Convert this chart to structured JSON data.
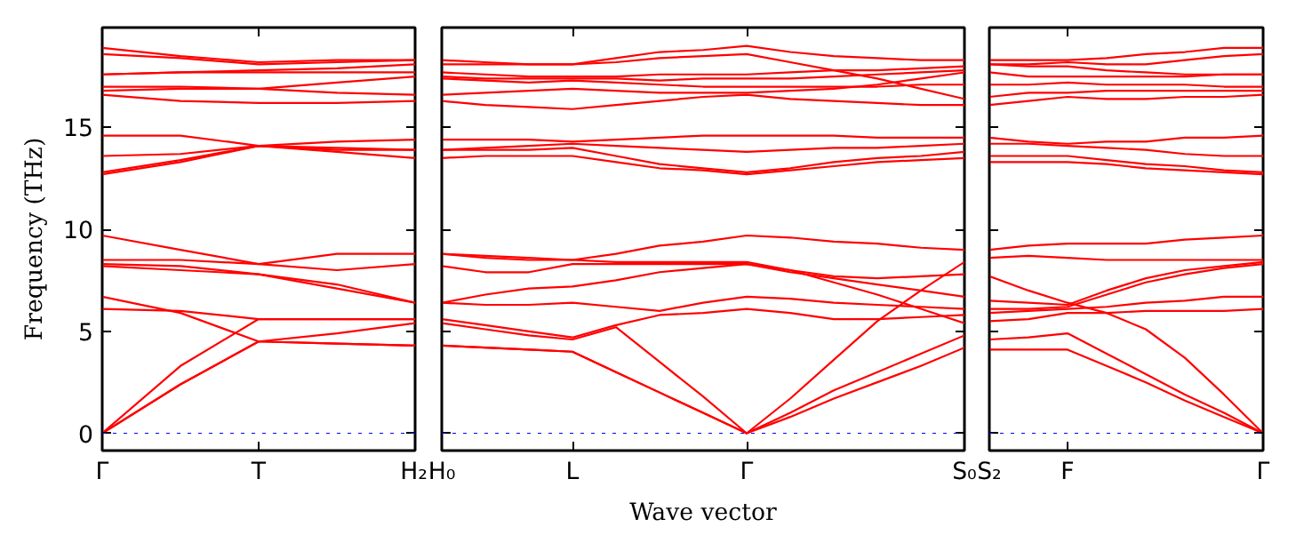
{
  "chart_data": [
    {
      "type": "line",
      "ylabel": "Frequency (THz)",
      "ylim": [
        -0.85,
        19.9
      ],
      "yticks": [
        0,
        5,
        10,
        15
      ],
      "categories": [
        "Γ",
        null,
        "T",
        null,
        "H₂"
      ],
      "ref_lines": [
        {
          "axis": "y",
          "value": 0,
          "color": "#0000ff",
          "line_style": "dotted"
        }
      ],
      "series": [
        {
          "color": "#ff0000",
          "values": [
            0,
            2.4,
            4.5,
            4.4,
            4.3
          ]
        },
        {
          "color": "#ff0000",
          "values": [
            0,
            2.4,
            4.5,
            4.9,
            5.4
          ]
        },
        {
          "color": "#ff0000",
          "values": [
            0,
            3.3,
            5.6,
            5.6,
            5.6
          ]
        },
        {
          "color": "#ff0000",
          "values": [
            6.1,
            6.0,
            5.6,
            5.6,
            5.6
          ]
        },
        {
          "color": "#ff0000",
          "values": [
            6.7,
            5.9,
            4.5,
            4.4,
            4.3
          ]
        },
        {
          "color": "#ff0000",
          "values": [
            8.2,
            8.0,
            7.8,
            7.1,
            6.4
          ]
        },
        {
          "color": "#ff0000",
          "values": [
            8.3,
            8.2,
            7.8,
            7.3,
            6.4
          ]
        },
        {
          "color": "#ff0000",
          "values": [
            8.5,
            8.5,
            8.3,
            8.0,
            8.3
          ]
        },
        {
          "color": "#ff0000",
          "values": [
            9.7,
            9.0,
            8.3,
            8.8,
            8.8
          ]
        },
        {
          "color": "#ff0000",
          "values": [
            12.7,
            13.3,
            14.1,
            14.0,
            13.9
          ]
        },
        {
          "color": "#ff0000",
          "values": [
            12.8,
            13.4,
            14.1,
            14.3,
            14.4
          ]
        },
        {
          "color": "#ff0000",
          "values": [
            13.6,
            13.7,
            14.1,
            13.8,
            13.5
          ]
        },
        {
          "color": "#ff0000",
          "values": [
            14.6,
            14.6,
            14.1,
            13.9,
            13.9
          ]
        },
        {
          "color": "#ff0000",
          "values": [
            16.6,
            16.3,
            16.2,
            16.2,
            16.3
          ]
        },
        {
          "color": "#ff0000",
          "values": [
            16.8,
            16.9,
            16.9,
            16.7,
            16.6
          ]
        },
        {
          "color": "#ff0000",
          "values": [
            17.0,
            17.0,
            16.9,
            17.2,
            17.5
          ]
        },
        {
          "color": "#ff0000",
          "values": [
            17.6,
            17.7,
            17.7,
            17.7,
            17.7
          ]
        },
        {
          "color": "#ff0000",
          "values": [
            17.6,
            17.7,
            17.8,
            17.9,
            18.1
          ]
        },
        {
          "color": "#ff0000",
          "values": [
            18.6,
            18.4,
            18.1,
            18.2,
            18.3
          ]
        },
        {
          "color": "#ff0000",
          "values": [
            18.9,
            18.5,
            18.2,
            18.3,
            18.3
          ]
        }
      ]
    },
    {
      "type": "line",
      "xlabel": "Wave vector",
      "tick_labels": "x",
      "ylim": [
        -0.85,
        19.9
      ],
      "yticks": [
        0,
        5,
        10,
        15
      ],
      "categories": [
        "H₀",
        null,
        null,
        "L",
        null,
        null,
        null,
        "Γ",
        null,
        null,
        null,
        null,
        "S₀"
      ],
      "ref_lines": [
        {
          "axis": "y",
          "value": 0,
          "color": "#0000ff",
          "line_style": "dotted"
        }
      ],
      "series": [
        {
          "color": "#ff0000",
          "values": [
            4.3,
            4.2,
            4.1,
            4.0,
            3.0,
            2.0,
            1.0,
            0,
            0.8,
            1.7,
            2.5,
            3.3,
            4.2
          ]
        },
        {
          "color": "#ff0000",
          "values": [
            4.3,
            4.2,
            4.1,
            4.0,
            3.0,
            2.0,
            1.0,
            0,
            1.0,
            2.1,
            3.0,
            3.9,
            4.8
          ]
        },
        {
          "color": "#ff0000",
          "values": [
            5.4,
            5.1,
            4.8,
            4.6,
            5.2,
            3.5,
            1.8,
            0,
            1.7,
            3.6,
            5.5,
            7.0,
            8.4
          ]
        },
        {
          "color": "#ff0000",
          "values": [
            5.6,
            5.3,
            5.0,
            4.7,
            5.3,
            5.8,
            5.9,
            6.1,
            5.9,
            5.6,
            5.6,
            5.7,
            5.8
          ]
        },
        {
          "color": "#ff0000",
          "values": [
            6.4,
            6.3,
            6.3,
            6.4,
            6.2,
            6.0,
            6.4,
            6.7,
            6.6,
            6.4,
            6.3,
            6.2,
            6.1
          ]
        },
        {
          "color": "#ff0000",
          "values": [
            6.4,
            6.8,
            7.1,
            7.2,
            7.5,
            7.9,
            8.1,
            8.3,
            7.9,
            7.6,
            7.3,
            7.0,
            6.7
          ]
        },
        {
          "color": "#ff0000",
          "values": [
            8.2,
            7.9,
            7.9,
            8.3,
            8.3,
            8.3,
            8.3,
            8.3,
            8.0,
            7.7,
            7.6,
            7.7,
            7.8
          ]
        },
        {
          "color": "#ff0000",
          "values": [
            8.8,
            8.7,
            8.6,
            8.5,
            8.4,
            8.4,
            8.4,
            8.4,
            8.0,
            7.4,
            6.8,
            6.1,
            5.4
          ]
        },
        {
          "color": "#ff0000",
          "values": [
            8.8,
            8.6,
            8.5,
            8.5,
            8.8,
            9.2,
            9.4,
            9.7,
            9.6,
            9.4,
            9.3,
            9.1,
            9.0
          ]
        },
        {
          "color": "#ff0000",
          "values": [
            13.5,
            13.6,
            13.6,
            13.6,
            13.3,
            13.0,
            12.9,
            12.7,
            12.9,
            13.1,
            13.3,
            13.4,
            13.5
          ]
        },
        {
          "color": "#ff0000",
          "values": [
            13.9,
            13.9,
            13.9,
            14.0,
            13.6,
            13.2,
            13.0,
            12.8,
            13.0,
            13.3,
            13.5,
            13.6,
            13.8
          ]
        },
        {
          "color": "#ff0000",
          "values": [
            13.9,
            14.0,
            14.1,
            14.2,
            14.1,
            14.0,
            13.9,
            13.8,
            13.9,
            14.0,
            14.0,
            14.1,
            14.2
          ]
        },
        {
          "color": "#ff0000",
          "values": [
            14.4,
            14.4,
            14.4,
            14.3,
            14.4,
            14.5,
            14.6,
            14.6,
            14.6,
            14.6,
            14.5,
            14.5,
            14.5
          ]
        },
        {
          "color": "#ff0000",
          "values": [
            16.3,
            16.1,
            16.0,
            15.9,
            16.1,
            16.3,
            16.5,
            16.6,
            16.4,
            16.3,
            16.2,
            16.1,
            16.1
          ]
        },
        {
          "color": "#ff0000",
          "values": [
            16.6,
            16.7,
            16.8,
            16.9,
            16.8,
            16.7,
            16.7,
            16.7,
            16.8,
            16.9,
            17.1,
            17.4,
            17.7
          ]
        },
        {
          "color": "#ff0000",
          "values": [
            17.4,
            17.3,
            17.2,
            17.3,
            17.2,
            17.1,
            17.0,
            17.0,
            17.0,
            17.0,
            17.0,
            17.1,
            17.1
          ]
        },
        {
          "color": "#ff0000",
          "values": [
            17.5,
            17.4,
            17.4,
            17.4,
            17.4,
            17.3,
            17.4,
            17.4,
            17.4,
            17.5,
            17.6,
            17.7,
            17.8
          ]
        },
        {
          "color": "#ff0000",
          "values": [
            17.7,
            17.6,
            17.5,
            17.5,
            17.5,
            17.6,
            17.6,
            17.6,
            17.7,
            17.8,
            17.8,
            17.9,
            18.0
          ]
        },
        {
          "color": "#ff0000",
          "values": [
            18.1,
            18.1,
            18.1,
            18.1,
            18.2,
            18.4,
            18.5,
            18.6,
            18.2,
            17.8,
            17.4,
            16.9,
            16.4
          ]
        },
        {
          "color": "#ff0000",
          "values": [
            18.3,
            18.2,
            18.1,
            18.1,
            18.4,
            18.7,
            18.8,
            19.0,
            18.7,
            18.5,
            18.4,
            18.3,
            18.3
          ]
        }
      ]
    },
    {
      "type": "line",
      "tick_labels": "x",
      "ylim": [
        -0.85,
        19.9
      ],
      "yticks": [
        0,
        5,
        10,
        15
      ],
      "categories": [
        "S₂",
        null,
        "F",
        null,
        null,
        null,
        null,
        "Γ"
      ],
      "ref_lines": [
        {
          "axis": "y",
          "value": 0,
          "color": "#0000ff",
          "line_style": "dotted"
        }
      ],
      "series": [
        {
          "color": "#ff0000",
          "values": [
            4.1,
            4.1,
            4.1,
            3.3,
            2.5,
            1.6,
            0.8,
            0
          ]
        },
        {
          "color": "#ff0000",
          "values": [
            4.6,
            4.7,
            4.9,
            3.9,
            2.9,
            1.9,
            1.0,
            0
          ]
        },
        {
          "color": "#ff0000",
          "values": [
            7.7,
            7.0,
            6.4,
            5.9,
            5.1,
            3.7,
            1.9,
            0
          ]
        },
        {
          "color": "#ff0000",
          "values": [
            5.5,
            5.6,
            5.9,
            5.9,
            6.0,
            6.0,
            6.0,
            6.1
          ]
        },
        {
          "color": "#ff0000",
          "values": [
            5.9,
            6.0,
            6.1,
            6.2,
            6.4,
            6.5,
            6.7,
            6.7
          ]
        },
        {
          "color": "#ff0000",
          "values": [
            6.1,
            6.1,
            6.2,
            6.8,
            7.4,
            7.8,
            8.1,
            8.3
          ]
        },
        {
          "color": "#ff0000",
          "values": [
            6.5,
            6.4,
            6.3,
            7.0,
            7.6,
            8.0,
            8.2,
            8.4
          ]
        },
        {
          "color": "#ff0000",
          "values": [
            8.6,
            8.7,
            8.6,
            8.5,
            8.5,
            8.5,
            8.5,
            8.5
          ]
        },
        {
          "color": "#ff0000",
          "values": [
            9.0,
            9.2,
            9.3,
            9.3,
            9.3,
            9.5,
            9.6,
            9.7
          ]
        },
        {
          "color": "#ff0000",
          "values": [
            13.3,
            13.3,
            13.3,
            13.2,
            13.0,
            12.9,
            12.8,
            12.7
          ]
        },
        {
          "color": "#ff0000",
          "values": [
            13.6,
            13.6,
            13.6,
            13.4,
            13.2,
            13.1,
            12.9,
            12.8
          ]
        },
        {
          "color": "#ff0000",
          "values": [
            14.2,
            14.2,
            14.1,
            14.0,
            13.9,
            13.7,
            13.6,
            13.6
          ]
        },
        {
          "color": "#ff0000",
          "values": [
            14.5,
            14.3,
            14.2,
            14.3,
            14.3,
            14.5,
            14.5,
            14.6
          ]
        },
        {
          "color": "#ff0000",
          "values": [
            16.1,
            16.3,
            16.5,
            16.4,
            16.4,
            16.5,
            16.5,
            16.6
          ]
        },
        {
          "color": "#ff0000",
          "values": [
            16.5,
            16.7,
            16.7,
            16.8,
            16.8,
            16.8,
            16.8,
            16.8
          ]
        },
        {
          "color": "#ff0000",
          "values": [
            17.1,
            17.1,
            17.2,
            17.1,
            17.1,
            17.1,
            17.0,
            17.0
          ]
        },
        {
          "color": "#ff0000",
          "values": [
            17.7,
            17.5,
            17.5,
            17.5,
            17.5,
            17.5,
            17.6,
            17.6
          ]
        },
        {
          "color": "#ff0000",
          "values": [
            18.1,
            18.0,
            18.0,
            17.8,
            17.7,
            17.6,
            17.6,
            17.6
          ]
        },
        {
          "color": "#ff0000",
          "values": [
            18.1,
            18.1,
            18.2,
            18.1,
            18.1,
            18.3,
            18.5,
            18.6
          ]
        },
        {
          "color": "#ff0000",
          "values": [
            18.3,
            18.3,
            18.3,
            18.4,
            18.6,
            18.7,
            18.9,
            18.9
          ]
        }
      ]
    }
  ]
}
